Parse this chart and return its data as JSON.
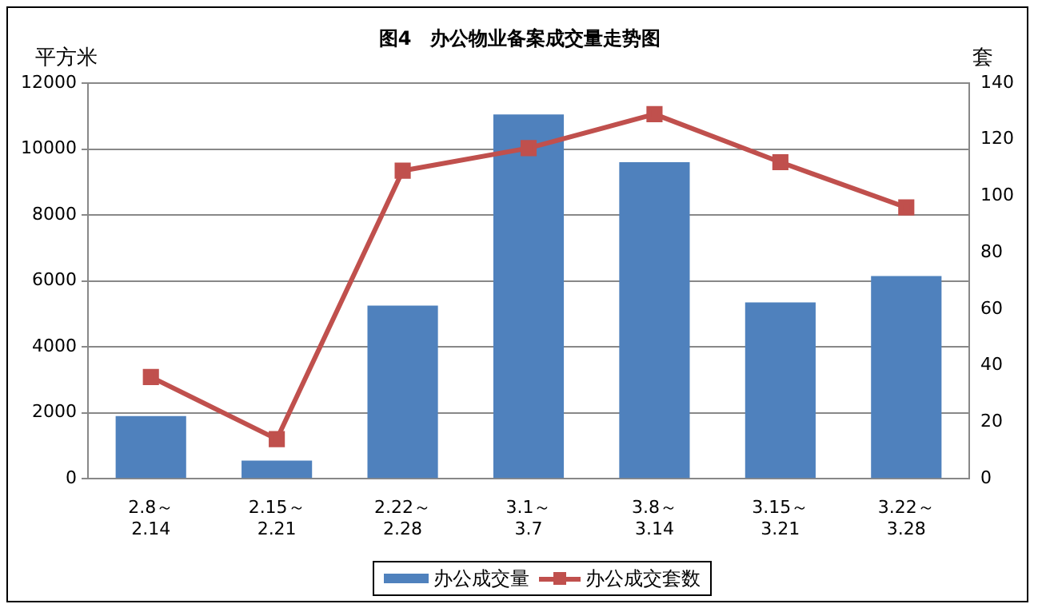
{
  "chart_data": {
    "type": "bar",
    "title": "图4　办公物业备案成交量走势图",
    "ylabel": "平方米",
    "y2label": "套",
    "categories": [
      "2.8～\n2.14",
      "2.15～\n2.21",
      "2.22～\n2.28",
      "3.1～\n3.7",
      "3.8～\n3.14",
      "3.15～\n3.21",
      "3.22～\n3.28"
    ],
    "series": [
      {
        "name": "办公成交量",
        "color": "#4f81bd",
        "values": [
          1900,
          550,
          5250,
          11050,
          9600,
          5350,
          6150
        ]
      },
      {
        "name": "办公成交套数",
        "type": "line",
        "axis": "y2",
        "color": "#c0504d",
        "marker": "square",
        "values": [
          36,
          14,
          109,
          117,
          129,
          112,
          96
        ]
      }
    ],
    "ylim": [
      0,
      12000
    ],
    "yticks": [
      0,
      2000,
      4000,
      6000,
      8000,
      10000,
      12000
    ],
    "y2lim": [
      0,
      140
    ],
    "y2ticks": [
      0,
      20,
      40,
      60,
      80,
      100,
      120,
      140
    ],
    "grid": "y",
    "legend": "bottom"
  }
}
